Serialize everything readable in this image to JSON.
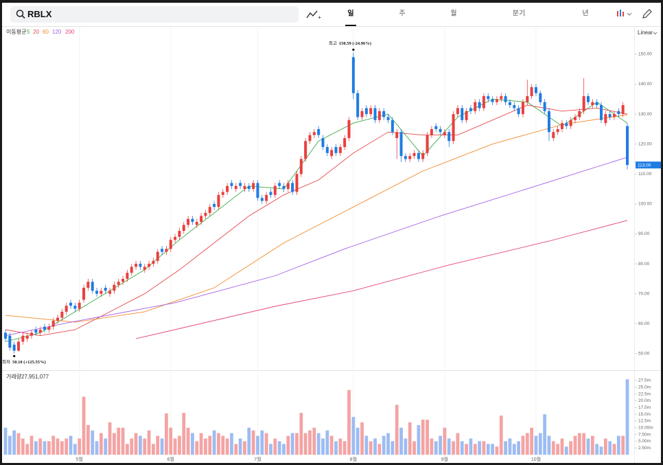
{
  "toolbar": {
    "search": "RBLX",
    "tabs": [
      "일",
      "주",
      "월",
      "분기",
      "년"
    ],
    "active_tab_index": 0,
    "scale": "Linear"
  },
  "chart_data": {
    "type": "candlestick",
    "categories": [
      null,
      null,
      null,
      null,
      null,
      null,
      null,
      null,
      null,
      null,
      null,
      null,
      null,
      null,
      null,
      null,
      null,
      "5월",
      null,
      null,
      null,
      null,
      null,
      null,
      null,
      null,
      null,
      null,
      null,
      null,
      null,
      null,
      null,
      null,
      null,
      null,
      null,
      null,
      "6월",
      null,
      null,
      null,
      null,
      null,
      null,
      null,
      null,
      null,
      null,
      null,
      null,
      null,
      null,
      null,
      null,
      null,
      null,
      null,
      "7월",
      null,
      null,
      null,
      null,
      null,
      null,
      null,
      null,
      null,
      null,
      null,
      null,
      null,
      null,
      null,
      null,
      null,
      null,
      null,
      null,
      null,
      "8월",
      null,
      null,
      null,
      null,
      null,
      null,
      null,
      null,
      null,
      null,
      null,
      null,
      null,
      null,
      null,
      null,
      null,
      null,
      null,
      null,
      "9월",
      null,
      null,
      null,
      null,
      null,
      null,
      null,
      null,
      null,
      null,
      null,
      null,
      null,
      null,
      null,
      null,
      null,
      null,
      null,
      null,
      "10월",
      null,
      null,
      null,
      null,
      null,
      null,
      null,
      null,
      null,
      null,
      null,
      null,
      null,
      null,
      null,
      null,
      null,
      null,
      null,
      null,
      null
    ],
    "open": [
      57,
      56,
      53,
      51,
      54,
      55,
      56,
      58,
      57,
      59,
      58,
      59,
      61,
      62,
      64,
      67,
      66,
      65,
      68,
      72,
      74,
      71,
      70,
      72,
      70,
      71,
      73,
      74,
      75,
      77,
      79,
      80,
      78,
      79,
      80,
      81,
      85,
      84,
      85,
      88,
      89,
      91,
      93,
      95,
      93,
      94,
      96,
      97,
      100,
      99,
      103,
      104,
      107,
      105,
      107,
      105,
      106,
      105,
      107,
      102,
      101,
      104,
      103,
      107,
      106,
      105,
      107,
      104,
      110,
      115,
      121,
      123,
      125,
      122,
      119,
      116,
      119,
      117,
      119,
      122,
      149,
      137,
      129,
      132,
      130,
      132,
      128,
      131,
      129,
      128,
      122,
      124,
      116,
      115,
      116,
      117,
      115,
      117,
      123,
      126,
      125,
      123,
      124,
      121,
      130,
      132,
      128,
      132,
      131,
      134,
      132,
      136,
      135,
      134,
      135,
      136,
      134,
      133,
      132,
      130,
      134,
      136,
      139,
      137,
      134,
      131,
      122,
      124,
      125,
      127,
      126,
      128,
      129,
      131,
      136,
      133,
      134,
      133,
      127,
      130,
      129,
      131,
      130,
      126
    ],
    "high": [
      58,
      57,
      54,
      55,
      57,
      57,
      58,
      59,
      59,
      60,
      60,
      62,
      63,
      65,
      67,
      68,
      67,
      68,
      73,
      75,
      75,
      72,
      72,
      73,
      72,
      74,
      75,
      76,
      78,
      80,
      81,
      81,
      80,
      81,
      82,
      85,
      86,
      86,
      89,
      90,
      92,
      94,
      96,
      96,
      95,
      97,
      98,
      100,
      101,
      104,
      105,
      107,
      108,
      107,
      108,
      107,
      107,
      108,
      108,
      103,
      104,
      105,
      107,
      108,
      107,
      108,
      108,
      111,
      116,
      122,
      124,
      125,
      126,
      123,
      120,
      119,
      120,
      120,
      123,
      129,
      150.59,
      138,
      132,
      133,
      133,
      133,
      132,
      132,
      130,
      129,
      125,
      125,
      117,
      117,
      118,
      118,
      118,
      124,
      126,
      127,
      126,
      125,
      125,
      131,
      133,
      133,
      132,
      133,
      135,
      135,
      137,
      137,
      136,
      136,
      137,
      137,
      135,
      134,
      133,
      135,
      141.5,
      140,
      140,
      138,
      135,
      132,
      125,
      126,
      128,
      128,
      129,
      130,
      132,
      142,
      137,
      135,
      135,
      134,
      131,
      131,
      131,
      132,
      134,
      127
    ],
    "low": [
      54,
      51,
      50.1,
      50.6,
      53,
      54,
      55,
      56,
      56,
      57,
      57,
      58,
      60,
      61,
      63,
      65,
      64,
      64,
      67,
      71,
      70,
      69,
      69,
      70,
      69,
      70,
      72,
      73,
      74,
      76,
      78,
      78,
      77,
      78,
      79,
      80,
      83,
      83,
      84,
      87,
      88,
      90,
      92,
      93,
      92,
      93,
      95,
      96,
      98,
      98,
      102,
      103,
      105,
      104,
      105,
      104,
      104,
      104,
      101,
      100,
      100,
      102,
      102,
      105,
      104,
      104,
      103,
      103,
      109,
      114,
      120,
      122,
      122,
      118,
      116,
      115,
      116,
      116,
      118,
      121,
      135,
      128,
      128,
      129,
      129,
      127,
      127,
      128,
      127,
      123,
      115,
      114,
      114,
      114,
      115,
      114,
      114,
      116,
      122,
      124,
      123,
      122,
      119,
      120,
      129,
      127,
      127,
      130,
      130,
      131,
      131,
      134,
      133,
      133,
      134,
      133,
      132,
      131,
      129,
      129,
      133,
      135,
      136,
      133,
      130,
      121,
      121,
      123,
      124,
      125,
      125,
      127,
      128,
      130,
      133,
      132,
      132,
      127,
      126,
      128,
      128,
      129,
      129,
      111.5
    ],
    "close": [
      55,
      52,
      51,
      54,
      56,
      56,
      57,
      57,
      58,
      58,
      59,
      61,
      62,
      64,
      66,
      66,
      65,
      67,
      72,
      74,
      71,
      70,
      71,
      71,
      71,
      73,
      74,
      75,
      77,
      79,
      80,
      79,
      79,
      80,
      81,
      84,
      84,
      85,
      88,
      89,
      91,
      93,
      95,
      94,
      94,
      96,
      97,
      99,
      99,
      103,
      104,
      106,
      106,
      106,
      106,
      106,
      105,
      107,
      102,
      101,
      103,
      103,
      106,
      106,
      105,
      107,
      104,
      110,
      115,
      121,
      123,
      124,
      123,
      119,
      117,
      118,
      117,
      119,
      122,
      128,
      137,
      129,
      131,
      130,
      132,
      128,
      131,
      129,
      128,
      124,
      124,
      116,
      115,
      116,
      117,
      115,
      117,
      123,
      125,
      125,
      124,
      124,
      121,
      130,
      132,
      128,
      131,
      131,
      134,
      132,
      136,
      135,
      134,
      135,
      136,
      134,
      133,
      132,
      130,
      134,
      136,
      139,
      137,
      134,
      131,
      124,
      124,
      125,
      127,
      126,
      128,
      129,
      131,
      136,
      134,
      134,
      133,
      128,
      130,
      129,
      130,
      130,
      133,
      113
    ],
    "volume": [
      10,
      7,
      9,
      8,
      6,
      4,
      7,
      5,
      6,
      5,
      5,
      7,
      6,
      5,
      6,
      7,
      4,
      6,
      21.5,
      11,
      9,
      5,
      8,
      6,
      12,
      8,
      10,
      10,
      4,
      6,
      8,
      7,
      6,
      9,
      4,
      7,
      6,
      15.3,
      10,
      6,
      7,
      15.5,
      10,
      8,
      5,
      8,
      6,
      7,
      9,
      8,
      7,
      6,
      8,
      4,
      6,
      5,
      10,
      9,
      7,
      9,
      8,
      4,
      6,
      5,
      4,
      7,
      8,
      8,
      15.5,
      8,
      9,
      10,
      8,
      6,
      9,
      7,
      5,
      6,
      5,
      24,
      14,
      10,
      12,
      7,
      5,
      6,
      4,
      7,
      8,
      5,
      18.5,
      10,
      6,
      12,
      5,
      11,
      13,
      13,
      6,
      5,
      7,
      10,
      6,
      5,
      8,
      5,
      4,
      6,
      4,
      5,
      5,
      4,
      4,
      3,
      14.5,
      5,
      6,
      4,
      5,
      7,
      8,
      10,
      7,
      8,
      15,
      7,
      5,
      4,
      6,
      3,
      5,
      7,
      8,
      8,
      6,
      7,
      4,
      3,
      6,
      5,
      4,
      7,
      7,
      27.951077
    ],
    "up_color": "#e8403f",
    "down_color": "#1f7ce3",
    "volume_up_color": "#f4a3a3",
    "volume_down_color": "#9dbcf2",
    "ylim": [
      44.7,
      158.7
    ],
    "yticks": [
      {
        "value": 50,
        "label": "50.00"
      },
      {
        "value": 60,
        "label": "60.00"
      },
      {
        "value": 70,
        "label": "70.00"
      },
      {
        "value": 80,
        "label": "80.00"
      },
      {
        "value": 90,
        "label": "90.00"
      },
      {
        "value": 100,
        "label": "100.00"
      },
      {
        "value": 110,
        "label": "110.00"
      },
      {
        "value": 120,
        "label": "120.00"
      },
      {
        "value": 130,
        "label": "130.00"
      },
      {
        "value": 140,
        "label": "140.00"
      },
      {
        "value": 150,
        "label": "150.00"
      }
    ],
    "volume_ylim": [
      0,
      30.3
    ],
    "volume_yticks": [
      {
        "value": 2.5,
        "label": "2.50m"
      },
      {
        "value": 5,
        "label": "5.00m"
      },
      {
        "value": 7.5,
        "label": "7.50m"
      },
      {
        "value": 10,
        "label": "10.00m"
      },
      {
        "value": 12.5,
        "label": "12.5m"
      },
      {
        "value": 15,
        "label": "15.0m"
      },
      {
        "value": 17.5,
        "label": "17.5m"
      },
      {
        "value": 20,
        "label": "20.0m"
      },
      {
        "value": 22.5,
        "label": "22.5m"
      },
      {
        "value": 25,
        "label": "25.0m"
      },
      {
        "value": 27.5,
        "label": "27.5m"
      }
    ],
    "ma_label": "이동평균",
    "moving_averages": [
      {
        "name": "5",
        "color": "#3daa48",
        "x": [
          0,
          8,
          16,
          24,
          32,
          40,
          48,
          56,
          64,
          72,
          80,
          88,
          96,
          104,
          112,
          120,
          128,
          136,
          143
        ],
        "values": [
          54,
          57,
          64,
          71,
          78,
          88,
          97,
          106,
          105,
          121,
          127,
          130,
          116,
          129,
          135,
          134,
          126,
          134,
          127
        ]
      },
      {
        "name": "20",
        "color": "#e5484d",
        "x": [
          0,
          8,
          16,
          24,
          32,
          40,
          48,
          56,
          64,
          72,
          80,
          88,
          96,
          104,
          112,
          120,
          128,
          136,
          143
        ],
        "values": [
          58,
          56,
          58,
          64,
          70,
          78,
          87,
          96,
          103,
          108,
          117,
          124,
          123,
          123,
          128,
          133,
          131,
          132,
          130
        ]
      },
      {
        "name": "60",
        "color": "#f08a2c",
        "x": [
          0,
          16,
          32,
          48,
          64,
          80,
          96,
          112,
          128,
          143
        ],
        "values": [
          62.8,
          60.5,
          64,
          72,
          87,
          99,
          111,
          120,
          126.5,
          129.8
        ]
      },
      {
        "name": "120",
        "color": "#a55ee6",
        "x": [
          0,
          15,
          39,
          62,
          78,
          100,
          122,
          143
        ],
        "values": [
          56,
          60.5,
          67,
          76,
          85,
          96,
          106,
          115.6
        ]
      },
      {
        "name": "200",
        "color": "#e5407c",
        "x": [
          30,
          62,
          80,
          102,
          125,
          143
        ],
        "values": [
          55,
          65.8,
          71,
          79.6,
          87.6,
          94.5
        ]
      }
    ],
    "volume_title": "거래량",
    "volume_value": "27,951,077",
    "annotations": [
      {
        "index": 80,
        "kind": "high",
        "prefix": "최고",
        "text": "150.59 (-24.96%)"
      },
      {
        "index": 2,
        "kind": "low",
        "prefix": "최저",
        "text": "50.10 (+125.55%)"
      }
    ],
    "price_tag": {
      "value": 113,
      "label": "113.00"
    }
  }
}
